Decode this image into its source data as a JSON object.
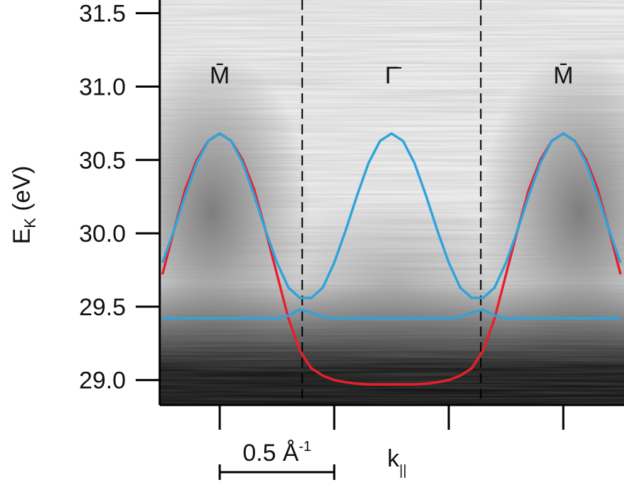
{
  "chart_data": {
    "type": "line",
    "ylabel": [
      "E",
      "K",
      " (eV)"
    ],
    "xlabel": [
      "k",
      "||"
    ],
    "x": [
      -0.25,
      -0.2,
      -0.15,
      -0.1,
      -0.05,
      0,
      0.05,
      0.1,
      0.15,
      0.2,
      0.25,
      0.3,
      0.35,
      0.4,
      0.45,
      0.5,
      0.55,
      0.6,
      0.65,
      0.7,
      0.75,
      0.8,
      0.85,
      0.9,
      0.95,
      1,
      1.05,
      1.1,
      1.15,
      1.2,
      1.25,
      1.3,
      1.35,
      1.4,
      1.45,
      1.5,
      1.55,
      1.6,
      1.65,
      1.7,
      1.75
    ],
    "series": [
      {
        "color": "#e8202a",
        "values": [
          29.72,
          30.02,
          30.3,
          30.5,
          30.63,
          30.68,
          30.63,
          30.5,
          30.3,
          30.02,
          29.72,
          29.42,
          29.2,
          29.08,
          29.03,
          29.0,
          28.985,
          28.975,
          28.97,
          28.97,
          28.97,
          28.97,
          28.97,
          28.975,
          28.985,
          29.0,
          29.03,
          29.08,
          29.2,
          29.42,
          29.72,
          30.02,
          30.3,
          30.5,
          30.63,
          30.68,
          30.63,
          30.5,
          30.3,
          30.02,
          29.72
        ]
      },
      {
        "color": "#2fa3dc",
        "values": [
          29.8,
          30.02,
          30.26,
          30.48,
          30.63,
          30.68,
          30.63,
          30.48,
          30.26,
          30.02,
          29.8,
          29.63,
          29.56,
          29.56,
          29.63,
          29.8,
          30.02,
          30.26,
          30.48,
          30.63,
          30.68,
          30.63,
          30.48,
          30.26,
          30.02,
          29.8,
          29.63,
          29.56,
          29.56,
          29.63,
          29.8,
          30.02,
          30.26,
          30.48,
          30.63,
          30.68,
          30.63,
          30.48,
          30.26,
          30.02,
          29.8
        ]
      },
      {
        "color": "#2fa3dc",
        "values": [
          29.42,
          29.42,
          29.42,
          29.42,
          29.42,
          29.42,
          29.42,
          29.42,
          29.42,
          29.42,
          29.42,
          29.44,
          29.48,
          29.46,
          29.43,
          29.42,
          29.42,
          29.42,
          29.42,
          29.42,
          29.42,
          29.42,
          29.42,
          29.42,
          29.42,
          29.42,
          29.43,
          29.46,
          29.48,
          29.44,
          29.42,
          29.42,
          29.42,
          29.42,
          29.42,
          29.42,
          29.42,
          29.42,
          29.42,
          29.42,
          29.42
        ]
      }
    ],
    "xlim": [
      -0.262,
      1.765
    ],
    "ylim": [
      28.83,
      31.59
    ],
    "xticks": [
      0,
      0.5,
      1,
      1.5
    ],
    "yticks": [
      {
        "value": 29,
        "label": "29.0"
      },
      29.5,
      {
        "value": 30,
        "label": "30.0"
      },
      30.5,
      {
        "value": 31,
        "label": "31.0"
      },
      31.5
    ],
    "vlines": [
      0.36,
      1.14
    ],
    "symmetry_points": [
      {
        "x": 0,
        "label": "M̄"
      },
      {
        "x": 0.75,
        "label": "Γ̄"
      },
      {
        "x": 1.5,
        "label": "M̄"
      }
    ],
    "scale_bar": {
      "start": 0,
      "length": 0.5,
      "label": [
        "0.5 Å",
        "-1"
      ]
    }
  }
}
